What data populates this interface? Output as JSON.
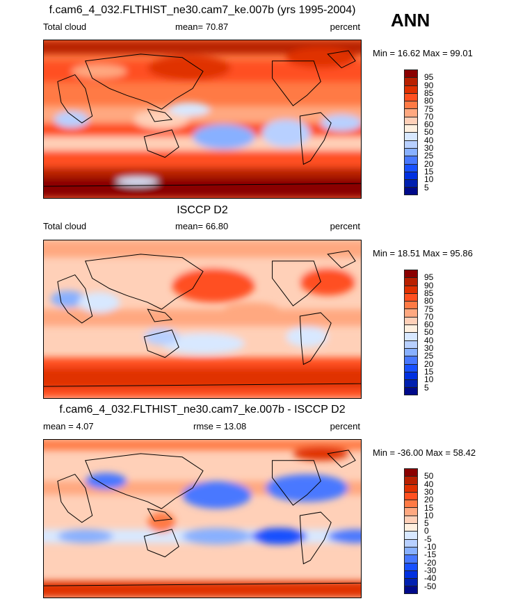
{
  "season": "ANN",
  "colors": [
    "#8a0000",
    "#b82000",
    "#e03000",
    "#ff5020",
    "#ff7a45",
    "#ffa880",
    "#ffd0b8",
    "#fff0e0",
    "#d8e8ff",
    "#b8d0ff",
    "#88b0ff",
    "#4878ff",
    "#1850ff",
    "#0030e0",
    "#0020b0",
    "#000a8a"
  ],
  "panels": [
    {
      "title": "f.cam6_4_032.FLTHIST_ne30.cam7_ke.007b (yrs 1995-2004)",
      "left_label": "Total cloud",
      "center_label": "mean=  70.87",
      "right_label": "percent",
      "minmax": "Min =  16.62 Max =  99.01",
      "levels": [
        "95",
        "90",
        "85",
        "80",
        "75",
        "70",
        "60",
        "50",
        "40",
        "30",
        "25",
        "20",
        "15",
        "10",
        "5"
      ]
    },
    {
      "title": "ISCCP D2",
      "left_label": "Total cloud",
      "center_label": "mean=  66.80",
      "right_label": "percent",
      "minmax": "Min =  18.51 Max =  95.86",
      "levels": [
        "95",
        "90",
        "85",
        "80",
        "75",
        "70",
        "60",
        "50",
        "40",
        "30",
        "25",
        "20",
        "15",
        "10",
        "5"
      ]
    },
    {
      "title": "f.cam6_4_032.FLTHIST_ne30.cam7_ke.007b - ISCCP D2",
      "left_label": "mean =   4.07",
      "center_label": "rmse =  13.08",
      "right_label": "percent",
      "minmax": "Min = -36.00 Max =  58.42",
      "levels": [
        "50",
        "40",
        "30",
        "20",
        "15",
        "10",
        "5",
        "0",
        "-5",
        "-10",
        "-15",
        "-20",
        "-30",
        "-40",
        "-50"
      ]
    }
  ]
}
